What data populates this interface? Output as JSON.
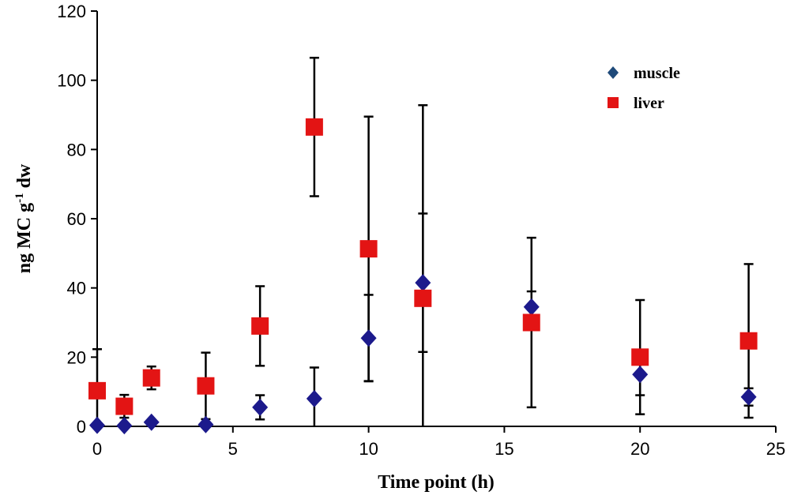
{
  "chart_data": {
    "type": "scatter",
    "title": "",
    "xlabel": "Time point (h)",
    "ylabel_main": "ng MC g",
    "ylabel_sup": "-1",
    "ylabel_end": " dw",
    "xlim": [
      0,
      25
    ],
    "ylim": [
      0,
      120
    ],
    "xticks": [
      0,
      5,
      10,
      15,
      20,
      25
    ],
    "yticks": [
      0,
      20,
      40,
      60,
      80,
      100,
      120
    ],
    "grid": false,
    "legend_position": "top-right",
    "series": [
      {
        "name": "muscle",
        "marker": "diamond",
        "color": "#1c1a8c",
        "points": [
          {
            "x": 0,
            "y": 0.3,
            "err": 22
          },
          {
            "x": 1,
            "y": 0.2,
            "err": 0
          },
          {
            "x": 2,
            "y": 1.2,
            "err": 0
          },
          {
            "x": 4,
            "y": 0.5,
            "err": 0
          },
          {
            "x": 6,
            "y": 5.5,
            "err": 3.5
          },
          {
            "x": 8,
            "y": 8,
            "err": 9
          },
          {
            "x": 10,
            "y": 25.5,
            "err": 12.5
          },
          {
            "x": 12,
            "y": 41.5,
            "err": 20
          },
          {
            "x": 16,
            "y": 34.5,
            "err": 4.5
          },
          {
            "x": 20,
            "y": 15,
            "err": 6
          },
          {
            "x": 24,
            "y": 8.5,
            "err": 2.5
          }
        ]
      },
      {
        "name": "liver",
        "marker": "square",
        "color": "#e31414",
        "points": [
          {
            "x": 0,
            "y": 10.3,
            "err": 0
          },
          {
            "x": 1,
            "y": 5.8,
            "err": 3.3
          },
          {
            "x": 2,
            "y": 14,
            "err": 3.3
          },
          {
            "x": 4,
            "y": 11.7,
            "err": 9.6
          },
          {
            "x": 6,
            "y": 29,
            "err": 11.5
          },
          {
            "x": 8,
            "y": 86.5,
            "err": 20
          },
          {
            "x": 10,
            "y": 51.3,
            "err": 38.2
          },
          {
            "x": 12,
            "y": 37,
            "err": 55.8
          },
          {
            "x": 16,
            "y": 30,
            "err": 24.5
          },
          {
            "x": 20,
            "y": 20,
            "err": 16.5
          },
          {
            "x": 24,
            "y": 24.7,
            "err": 22.2
          }
        ]
      }
    ]
  }
}
